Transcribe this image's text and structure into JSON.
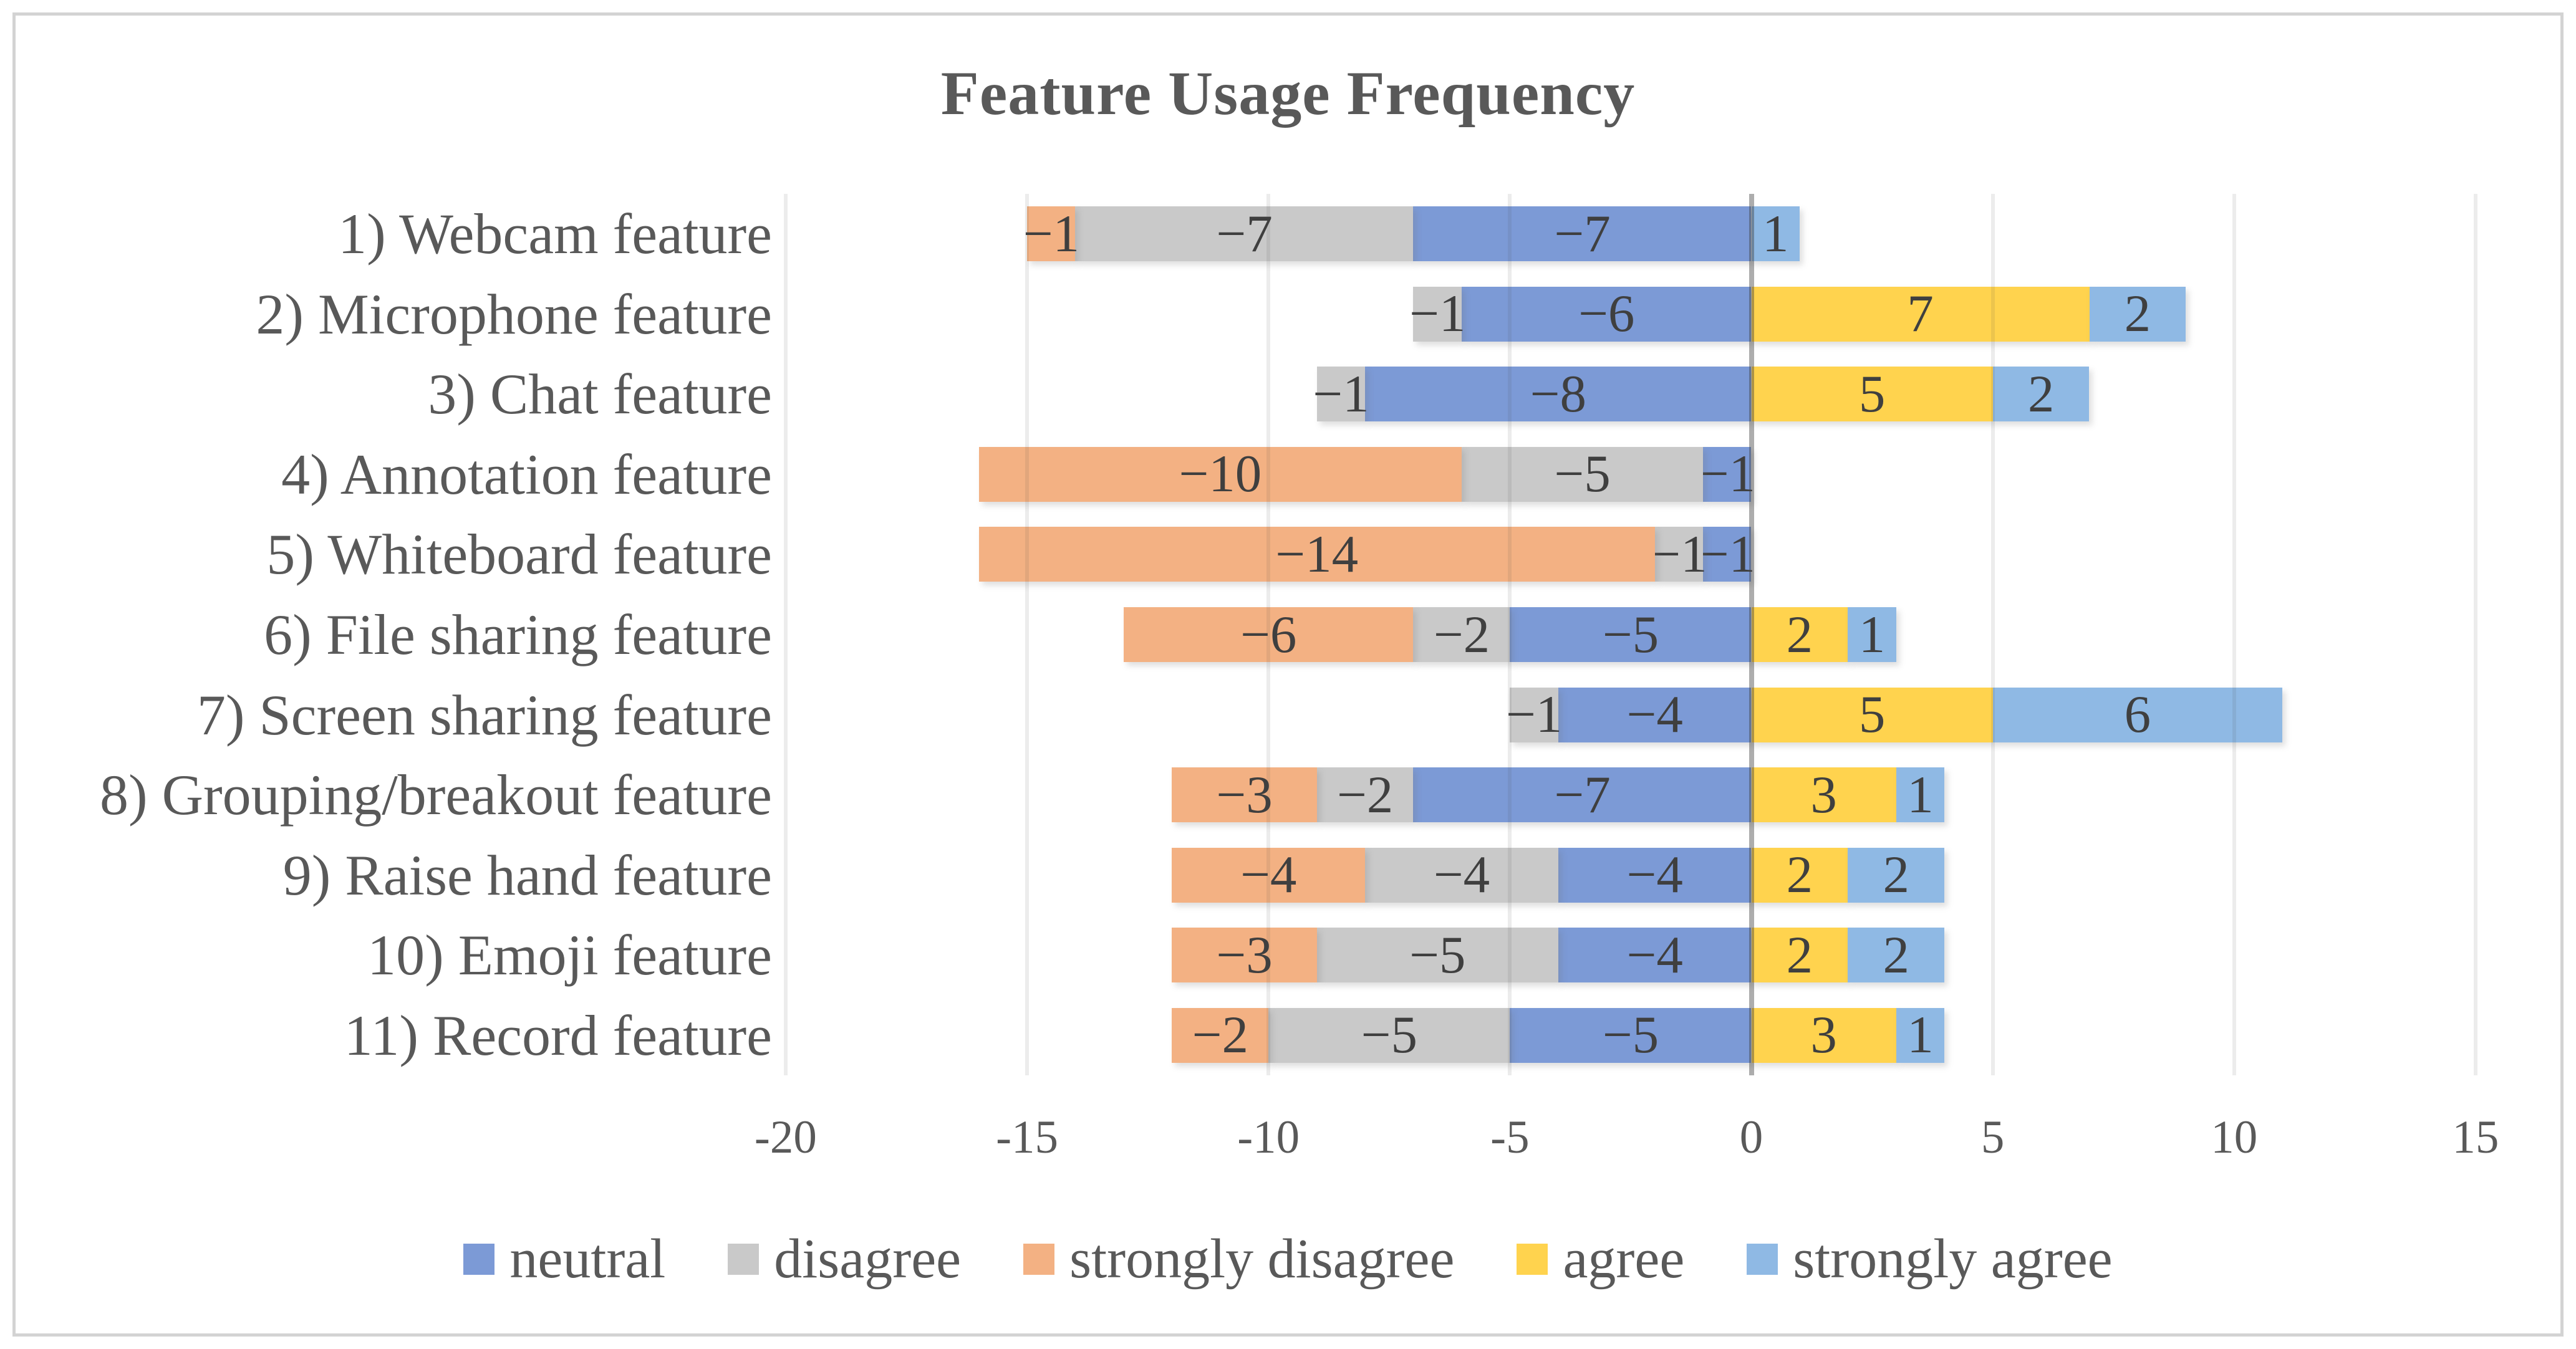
{
  "chart_data": {
    "type": "bar",
    "variant": "horizontal-diverging-stacked",
    "title": "Feature Usage Frequency",
    "categories": [
      "1) Webcam feature",
      "2) Microphone feature",
      "3) Chat feature",
      "4) Annotation feature",
      "5) Whiteboard feature",
      "6) File sharing feature",
      "7) Screen sharing feature",
      "8) Grouping/breakout feature",
      "9) Raise hand feature",
      "10) Emoji feature",
      "11) Record feature"
    ],
    "series": [
      {
        "name": "neutral",
        "color": "#7C9AD6",
        "values": [
          -7,
          -6,
          -8,
          -1,
          -1,
          -5,
          -4,
          -7,
          -4,
          -4,
          -5
        ]
      },
      {
        "name": "disagree",
        "color": "#C9C9C9",
        "values": [
          -7,
          -1,
          -1,
          -5,
          -1,
          -2,
          -1,
          -2,
          -4,
          -5,
          -5
        ]
      },
      {
        "name": "strongly disagree",
        "color": "#F3B183",
        "values": [
          -1,
          0,
          0,
          -10,
          -14,
          -6,
          0,
          -3,
          -4,
          -3,
          -2
        ]
      },
      {
        "name": "agree",
        "color": "#FFD34E",
        "values": [
          0,
          7,
          5,
          0,
          0,
          2,
          5,
          3,
          2,
          2,
          3
        ]
      },
      {
        "name": "strongly agree",
        "color": "#8FB9E4",
        "values": [
          1,
          2,
          2,
          0,
          0,
          1,
          6,
          1,
          2,
          2,
          1
        ]
      }
    ],
    "negative_stack_order_from_zero": [
      "neutral",
      "disagree",
      "strongly disagree"
    ],
    "positive_stack_order_from_zero": [
      "agree",
      "strongly agree"
    ],
    "xticks": [
      -20,
      -15,
      -10,
      -5,
      0,
      5,
      10,
      15
    ],
    "xlim": [
      -20,
      15
    ],
    "legend": [
      "neutral",
      "disagree",
      "strongly disagree",
      "agree",
      "strongly agree"
    ],
    "legend_position": "bottom",
    "gridlines": "vertical",
    "colors": {
      "grid": "#ECECEC",
      "zero_line": "#ABABAB",
      "axis_text": "#595959",
      "data_label_text": "#3F3F3F",
      "title_text": "#595959",
      "frame_border": "#D3D3D3",
      "background": "#FFFFFF"
    }
  }
}
